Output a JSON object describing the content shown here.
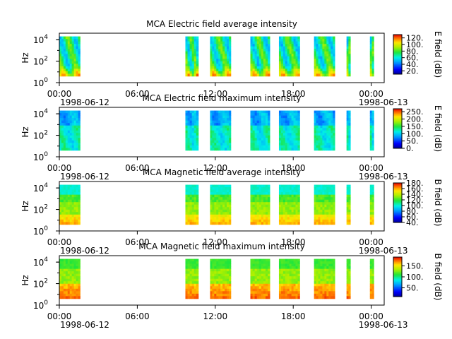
{
  "chart_data": [
    {
      "type": "heatmap",
      "title": "MCA  Electric field average intensity",
      "ylabel": "Hz",
      "ytick_labels": [
        {
          "base": "10",
          "exp": "0"
        },
        {
          "base": "10",
          "exp": "2"
        },
        {
          "base": "10",
          "exp": "4"
        }
      ],
      "ylim_log10": [
        0,
        4.6
      ],
      "xlim_hours": [
        0,
        25
      ],
      "xtick_hours": [
        0,
        6,
        12,
        18,
        24
      ],
      "xtick_labels": [
        "00:00",
        "06:00",
        "12:00",
        "18:00",
        "00:00"
      ],
      "date_labels": [
        "1998-06-12",
        "1998-06-13"
      ],
      "colorbar": {
        "label": "E field (dB)",
        "range": [
          10,
          130
        ],
        "ticks": [
          20,
          40,
          60,
          80,
          100,
          120
        ],
        "tick_labels": [
          "20.",
          "40.",
          "60.",
          "80.",
          "100.",
          "120."
        ]
      },
      "data_blocks_hours": [
        [
          0.0,
          1.6
        ],
        [
          9.7,
          10.7
        ],
        [
          11.6,
          13.2
        ],
        [
          14.7,
          16.2
        ],
        [
          16.9,
          18.5
        ],
        [
          19.6,
          21.2
        ],
        [
          22.1,
          22.4
        ],
        [
          23.9,
          24.2
        ]
      ],
      "freq_range_log10": [
        0.6,
        4.3
      ],
      "profile": "avgE"
    },
    {
      "type": "heatmap",
      "title": "MCA  Electric field maximum intensity",
      "ylabel": "Hz",
      "ytick_labels": [
        {
          "base": "10",
          "exp": "0"
        },
        {
          "base": "10",
          "exp": "2"
        },
        {
          "base": "10",
          "exp": "4"
        }
      ],
      "ylim_log10": [
        0,
        4.6
      ],
      "xlim_hours": [
        0,
        25
      ],
      "xtick_hours": [
        0,
        6,
        12,
        18,
        24
      ],
      "xtick_labels": [
        "00:00",
        "06:00",
        "12:00",
        "18:00",
        "00:00"
      ],
      "date_labels": [
        "1998-06-12",
        "1998-06-13"
      ],
      "colorbar": {
        "label": "E field (dB)",
        "range": [
          0,
          270
        ],
        "ticks": [
          0,
          50,
          100,
          150,
          200,
          250
        ],
        "tick_labels": [
          "0.",
          "50.",
          "100.",
          "150.",
          "200.",
          "250."
        ]
      },
      "data_blocks_hours": [
        [
          0.0,
          1.6
        ],
        [
          9.7,
          10.7
        ],
        [
          11.6,
          13.2
        ],
        [
          14.7,
          16.2
        ],
        [
          16.9,
          18.5
        ],
        [
          19.6,
          21.2
        ],
        [
          22.1,
          22.4
        ],
        [
          23.9,
          24.2
        ]
      ],
      "freq_range_log10": [
        0.6,
        4.3
      ],
      "profile": "maxE"
    },
    {
      "type": "heatmap",
      "title": "MCA  Magnetic field average intensity",
      "ylabel": "Hz",
      "ytick_labels": [
        {
          "base": "10",
          "exp": "0"
        },
        {
          "base": "10",
          "exp": "2"
        },
        {
          "base": "10",
          "exp": "4"
        }
      ],
      "ylim_log10": [
        0,
        4.6
      ],
      "xlim_hours": [
        0,
        25
      ],
      "xtick_hours": [
        0,
        6,
        12,
        18,
        24
      ],
      "xtick_labels": [
        "00:00",
        "06:00",
        "12:00",
        "18:00",
        "00:00"
      ],
      "date_labels": [
        "1998-06-12",
        "1998-06-13"
      ],
      "colorbar": {
        "label": "B field (dB)",
        "range": [
          40,
          180
        ],
        "ticks": [
          40,
          60,
          80,
          100,
          120,
          140,
          160,
          180
        ],
        "tick_labels": [
          "40.",
          "60.",
          "80.",
          "100.",
          "120.",
          "140.",
          "160.",
          "180."
        ]
      },
      "data_blocks_hours": [
        [
          0.0,
          1.6
        ],
        [
          9.7,
          10.7
        ],
        [
          11.6,
          13.2
        ],
        [
          14.7,
          16.2
        ],
        [
          16.9,
          18.5
        ],
        [
          19.6,
          21.2
        ],
        [
          22.1,
          22.4
        ],
        [
          23.9,
          24.2
        ]
      ],
      "freq_range_log10": [
        0.6,
        4.3
      ],
      "profile": "avgB"
    },
    {
      "type": "heatmap",
      "title": "MCA  Magnetic field maximum intensity",
      "ylabel": "Hz",
      "ytick_labels": [
        {
          "base": "10",
          "exp": "0"
        },
        {
          "base": "10",
          "exp": "2"
        },
        {
          "base": "10",
          "exp": "4"
        }
      ],
      "ylim_log10": [
        0,
        4.6
      ],
      "xlim_hours": [
        0,
        25
      ],
      "xtick_hours": [
        0,
        6,
        12,
        18,
        24
      ],
      "xtick_labels": [
        "00:00",
        "06:00",
        "12:00",
        "18:00",
        "00:00"
      ],
      "date_labels": [
        "1998-06-12",
        "1998-06-13"
      ],
      "colorbar": {
        "label": "B field (dB)",
        "range": [
          10,
          190
        ],
        "ticks": [
          50,
          100,
          150
        ],
        "tick_labels": [
          "50.",
          "100.",
          "150."
        ]
      },
      "data_blocks_hours": [
        [
          0.0,
          1.6
        ],
        [
          9.7,
          10.7
        ],
        [
          11.6,
          13.2
        ],
        [
          14.7,
          16.2
        ],
        [
          16.9,
          18.5
        ],
        [
          19.6,
          21.2
        ],
        [
          22.1,
          22.4
        ],
        [
          23.9,
          24.2
        ]
      ],
      "freq_range_log10": [
        0.6,
        4.3
      ],
      "profile": "maxB"
    }
  ]
}
